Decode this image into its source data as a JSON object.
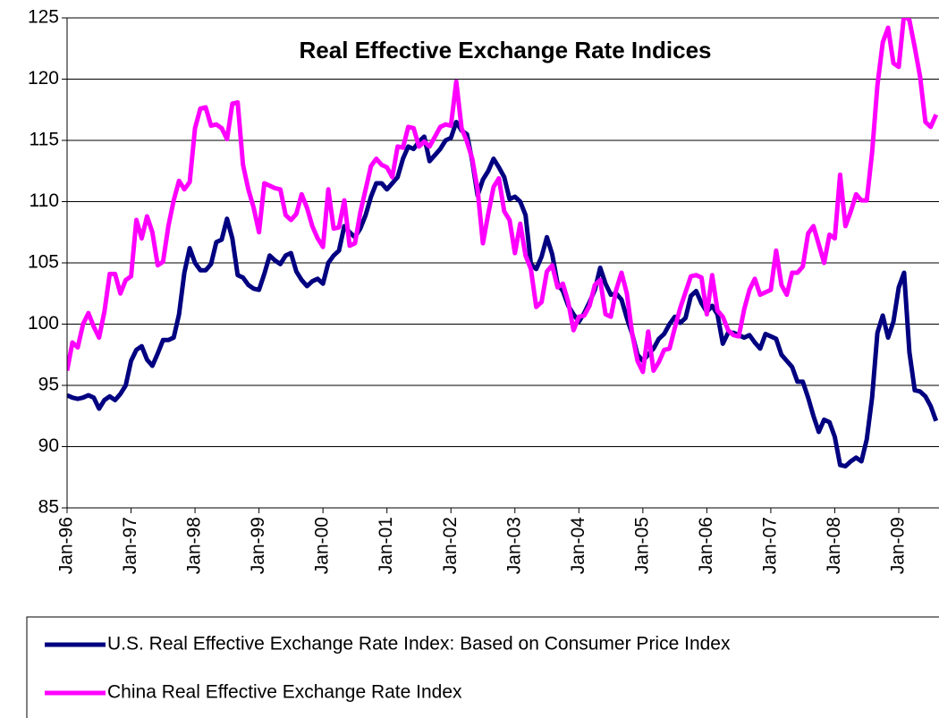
{
  "chart_data": {
    "type": "line",
    "title": "Real Effective Exchange Rate Indices",
    "categories": [
      "Jan-96",
      null,
      null,
      null,
      null,
      null,
      null,
      null,
      null,
      null,
      null,
      null,
      "Jan-97",
      null,
      null,
      null,
      null,
      null,
      null,
      null,
      null,
      null,
      null,
      null,
      "Jan-98",
      null,
      null,
      null,
      null,
      null,
      null,
      null,
      null,
      null,
      null,
      null,
      "Jan-99",
      null,
      null,
      null,
      null,
      null,
      null,
      null,
      null,
      null,
      null,
      null,
      "Jan-00",
      null,
      null,
      null,
      null,
      null,
      null,
      null,
      null,
      null,
      null,
      null,
      "Jan-01",
      null,
      null,
      null,
      null,
      null,
      null,
      null,
      null,
      null,
      null,
      null,
      "Jan-02",
      null,
      null,
      null,
      null,
      null,
      null,
      null,
      null,
      null,
      null,
      null,
      "Jan-03",
      null,
      null,
      null,
      null,
      null,
      null,
      null,
      null,
      null,
      null,
      null,
      "Jan-04",
      null,
      null,
      null,
      null,
      null,
      null,
      null,
      null,
      null,
      null,
      null,
      "Jan-05",
      null,
      null,
      null,
      null,
      null,
      null,
      null,
      null,
      null,
      null,
      null,
      "Jan-06",
      null,
      null,
      null,
      null,
      null,
      null,
      null,
      null,
      null,
      null,
      null,
      "Jan-07",
      null,
      null,
      null,
      null,
      null,
      null,
      null,
      null,
      null,
      null,
      null,
      "Jan-08",
      null,
      null,
      null,
      null,
      null,
      null,
      null,
      null,
      null,
      null,
      null,
      "Jan-09",
      null,
      null,
      null,
      null,
      null,
      null,
      null
    ],
    "series": [
      {
        "name": "U.S. Real Effective Exchange Rate Index: Based on Consumer Price Index",
        "color": "#000080",
        "values": [
          94.2,
          94.0,
          93.9,
          94.0,
          94.2,
          94.0,
          93.1,
          93.8,
          94.1,
          93.8,
          94.3,
          95.0,
          97.0,
          97.9,
          98.2,
          97.1,
          96.6,
          97.6,
          98.7,
          98.7,
          98.9,
          100.8,
          104.2,
          106.2,
          105.0,
          104.4,
          104.4,
          104.9,
          106.7,
          106.9,
          108.6,
          107.0,
          104.0,
          103.8,
          103.2,
          102.9,
          102.8,
          104.1,
          105.6,
          105.2,
          104.9,
          105.6,
          105.8,
          104.3,
          103.6,
          103.1,
          103.5,
          103.7,
          103.3,
          105.0,
          105.6,
          106.0,
          108.0,
          107.5,
          107.1,
          107.8,
          108.9,
          110.4,
          111.5,
          111.5,
          111.0,
          111.5,
          112.0,
          113.5,
          114.5,
          114.3,
          114.9,
          115.3,
          113.3,
          113.8,
          114.3,
          115.0,
          115.2,
          116.5,
          115.8,
          115.5,
          113.3,
          110.5,
          111.8,
          112.5,
          113.5,
          112.8,
          112.0,
          110.2,
          110.4,
          110.0,
          108.9,
          104.9,
          104.5,
          105.5,
          107.1,
          105.7,
          103.3,
          102.7,
          101.5,
          100.8,
          100.2,
          100.9,
          101.8,
          102.8,
          104.6,
          103.3,
          102.4,
          102.5,
          102.0,
          100.5,
          99.2,
          97.5,
          97.0,
          97.5,
          98.0,
          98.8,
          99.2,
          100.0,
          100.6,
          100.1,
          100.5,
          102.3,
          102.7,
          101.7,
          101.0,
          101.5,
          100.8,
          98.4,
          99.3,
          99.3,
          99.1,
          98.9,
          99.1,
          98.5,
          98.0,
          99.2,
          99.0,
          98.8,
          97.5,
          97.0,
          96.5,
          95.3,
          95.3,
          94.0,
          92.5,
          91.2,
          92.2,
          92.0,
          90.8,
          88.5,
          88.4,
          88.8,
          89.1,
          88.8,
          90.6,
          94.0,
          99.3,
          100.7,
          98.9,
          100.2,
          103.0,
          104.2,
          97.7,
          94.6,
          94.5,
          94.1,
          93.3,
          92.1
        ]
      },
      {
        "name": "China Real Effective Exchange Rate Index",
        "color": "#ff00ff",
        "values": [
          96.2,
          98.5,
          98.1,
          100.0,
          100.9,
          99.8,
          98.9,
          101.0,
          104.1,
          104.1,
          102.5,
          103.6,
          103.9,
          108.5,
          107.0,
          108.8,
          107.5,
          104.8,
          105.1,
          108.0,
          110.1,
          111.7,
          111.0,
          111.6,
          116.0,
          117.6,
          117.7,
          116.2,
          116.3,
          116.0,
          115.1,
          118.0,
          118.1,
          113.0,
          111.0,
          109.5,
          107.5,
          111.5,
          111.3,
          111.1,
          111.0,
          108.9,
          108.5,
          109.0,
          110.6,
          109.5,
          108.0,
          107.0,
          106.3,
          111.0,
          107.8,
          107.9,
          110.1,
          106.4,
          106.6,
          109.1,
          111.0,
          112.9,
          113.5,
          113.0,
          112.8,
          112.0,
          114.5,
          114.4,
          116.1,
          116.0,
          114.5,
          114.9,
          114.5,
          115.3,
          116.1,
          116.3,
          116.2,
          119.8,
          116.0,
          114.9,
          113.5,
          111.0,
          106.6,
          109.0,
          111.2,
          111.9,
          109.2,
          108.5,
          105.8,
          108.2,
          105.6,
          104.5,
          101.4,
          101.8,
          104.3,
          104.8,
          103.0,
          103.3,
          101.8,
          99.5,
          100.6,
          100.7,
          101.5,
          103.2,
          103.6,
          100.8,
          100.6,
          102.8,
          104.2,
          102.5,
          99.2,
          97.0,
          96.1,
          99.4,
          96.2,
          96.9,
          97.9,
          98.0,
          99.7,
          101.3,
          102.6,
          103.9,
          104.0,
          103.8,
          100.8,
          104.0,
          101.1,
          100.6,
          99.5,
          99.1,
          99.0,
          101.2,
          102.8,
          103.7,
          102.4,
          102.6,
          102.8,
          106.0,
          103.2,
          102.4,
          104.2,
          104.2,
          104.7,
          107.4,
          108.0,
          106.5,
          105.0,
          107.3,
          107.0,
          112.2,
          108.0,
          109.2,
          110.6,
          110.1,
          110.1,
          114.0,
          119.5,
          123.0,
          124.2,
          121.3,
          121.0,
          125.3,
          124.8,
          122.6,
          120.2,
          116.5,
          116.1,
          117.1
        ]
      }
    ],
    "ylim": [
      85,
      125
    ],
    "yticks": [
      85,
      90,
      95,
      100,
      105,
      110,
      115,
      120,
      125
    ],
    "grid": true
  }
}
